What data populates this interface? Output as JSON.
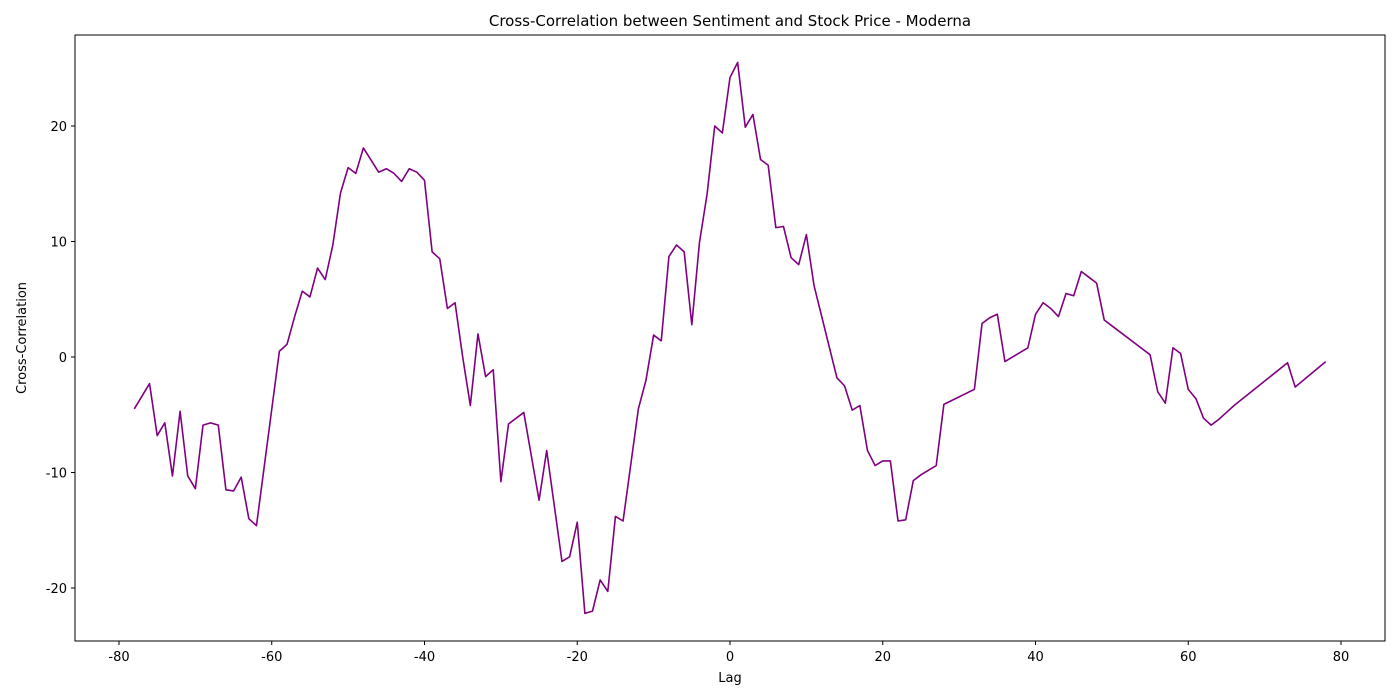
{
  "chart_data": {
    "type": "line",
    "title": "Cross-Correlation between Sentiment and Stock Price - Moderna",
    "x_label": "Lag",
    "y_label": "Cross-Correlation",
    "x": [
      -78,
      -76,
      -75,
      -74,
      -73,
      -72,
      -71,
      -70,
      -69,
      -68,
      -67,
      -66,
      -65,
      -64,
      -63,
      -62,
      -59,
      -58,
      -57,
      -56,
      -55,
      -54,
      -53,
      -52,
      -51,
      -50,
      -49,
      -48,
      -46,
      -45,
      -44,
      -43,
      -42,
      -41,
      -40,
      -39,
      -38,
      -37,
      -36,
      -35,
      -34,
      -33,
      -32,
      -31,
      -30,
      -29,
      -27,
      -25,
      -24,
      -22,
      -21,
      -20,
      -19,
      -18,
      -17,
      -16,
      -15,
      -14,
      -12,
      -11,
      -10,
      -9,
      -8,
      -7,
      -6,
      -5,
      -4,
      -3,
      -2,
      -1,
      0,
      1,
      2,
      3,
      4,
      5,
      6,
      7,
      8,
      9,
      10,
      11,
      14,
      15,
      16,
      17,
      18,
      19,
      20,
      21,
      22,
      23,
      24,
      25,
      27,
      28,
      32,
      33,
      34,
      35,
      36,
      39,
      40,
      41,
      42,
      43,
      44,
      45,
      46,
      47,
      48,
      49,
      50,
      55,
      56,
      57,
      58,
      59,
      60,
      61,
      62,
      63,
      64,
      65,
      66,
      73,
      74,
      78
    ],
    "series": [
      {
        "name": "Cross-Correlation",
        "color": "#800080",
        "values": [
          -4.5,
          -2.3,
          -6.8,
          -5.7,
          -10.3,
          -4.7,
          -10.3,
          -11.4,
          -5.9,
          -5.7,
          -5.9,
          -11.5,
          -11.6,
          -10.4,
          -14.0,
          -14.6,
          0.5,
          1.1,
          3.5,
          5.7,
          5.2,
          7.7,
          6.7,
          9.7,
          14.2,
          16.4,
          15.9,
          18.1,
          16.0,
          16.3,
          15.9,
          15.2,
          16.3,
          16.0,
          15.3,
          9.1,
          8.5,
          4.2,
          4.7,
          0.0,
          -4.2,
          2.0,
          -1.7,
          -1.1,
          -10.8,
          -5.8,
          -4.8,
          -12.4,
          -8.1,
          -17.7,
          -17.3,
          -14.3,
          -22.2,
          -22.0,
          -19.3,
          -20.3,
          -13.8,
          -14.2,
          -4.5,
          -2.0,
          1.9,
          1.4,
          8.7,
          9.7,
          9.1,
          2.8,
          9.9,
          14.1,
          20.0,
          19.4,
          24.2,
          25.5,
          19.9,
          21.0,
          17.1,
          16.6,
          11.2,
          11.3,
          8.6,
          8.0,
          10.6,
          6.2,
          -1.8,
          -2.5,
          -4.6,
          -4.2,
          -8.1,
          -9.4,
          -9.0,
          -9.0,
          -14.2,
          -14.1,
          -10.7,
          -10.2,
          -9.4,
          -4.1,
          -2.8,
          2.9,
          3.4,
          3.7,
          -0.4,
          0.8,
          3.7,
          4.7,
          4.2,
          3.5,
          5.5,
          5.3,
          7.4,
          6.9,
          6.4,
          3.2,
          2.7,
          0.2,
          -3.0,
          -4.0,
          0.8,
          0.3,
          -2.8,
          -3.6,
          -5.3,
          -5.9,
          -5.4,
          -4.8,
          -4.2,
          -0.5,
          -2.6,
          -0.4
        ]
      }
    ],
    "xlim": [
      -85.76,
      85.76
    ],
    "xticks": [
      -80,
      -60,
      -40,
      -20,
      0,
      20,
      40,
      60,
      80
    ],
    "ylim": [
      -24.59,
      27.88
    ],
    "yticks": [
      -20,
      -10,
      0,
      10,
      20
    ],
    "grid": false
  }
}
